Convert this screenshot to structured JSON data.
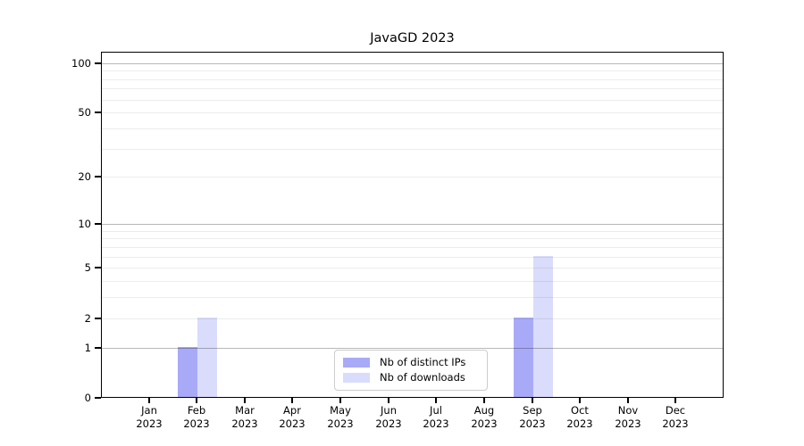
{
  "chart_data": {
    "type": "bar",
    "title": "JavaGD 2023",
    "categories": [
      "Jan",
      "Feb",
      "Mar",
      "Apr",
      "May",
      "Jun",
      "Jul",
      "Aug",
      "Sep",
      "Oct",
      "Nov",
      "Dec"
    ],
    "year": "2023",
    "series": [
      {
        "name": "Nb of distinct IPs",
        "color": "#a8aaf8",
        "values": [
          0,
          1,
          0,
          0,
          0,
          0,
          0,
          0,
          2,
          0,
          0,
          0
        ]
      },
      {
        "name": "Nb of downloads",
        "color": "#dadcfb",
        "values": [
          0,
          2,
          0,
          0,
          0,
          0,
          0,
          0,
          6,
          0,
          0,
          0
        ]
      }
    ],
    "xlabel": "",
    "ylabel": "",
    "yscale": "log1p",
    "ylim": [
      0,
      117
    ],
    "y_tick_labels": [
      0,
      1,
      2,
      5,
      10,
      20,
      50,
      100
    ],
    "major_gridlines": [
      1,
      10,
      100
    ],
    "minor_gridlines": [
      2,
      3,
      4,
      5,
      6,
      7,
      8,
      9,
      20,
      30,
      40,
      50,
      60,
      70,
      80,
      90
    ],
    "legend": {
      "position": "lower center",
      "items": [
        "Nb of distinct IPs",
        "Nb of downloads"
      ]
    },
    "colors": {
      "bar_distinct_ips": "#a8aaf8",
      "bar_downloads": "#dadcfb",
      "major_grid": "#b5b5b5",
      "minor_grid": "#ececec",
      "axis": "#000000",
      "background": "#ffffff"
    }
  }
}
